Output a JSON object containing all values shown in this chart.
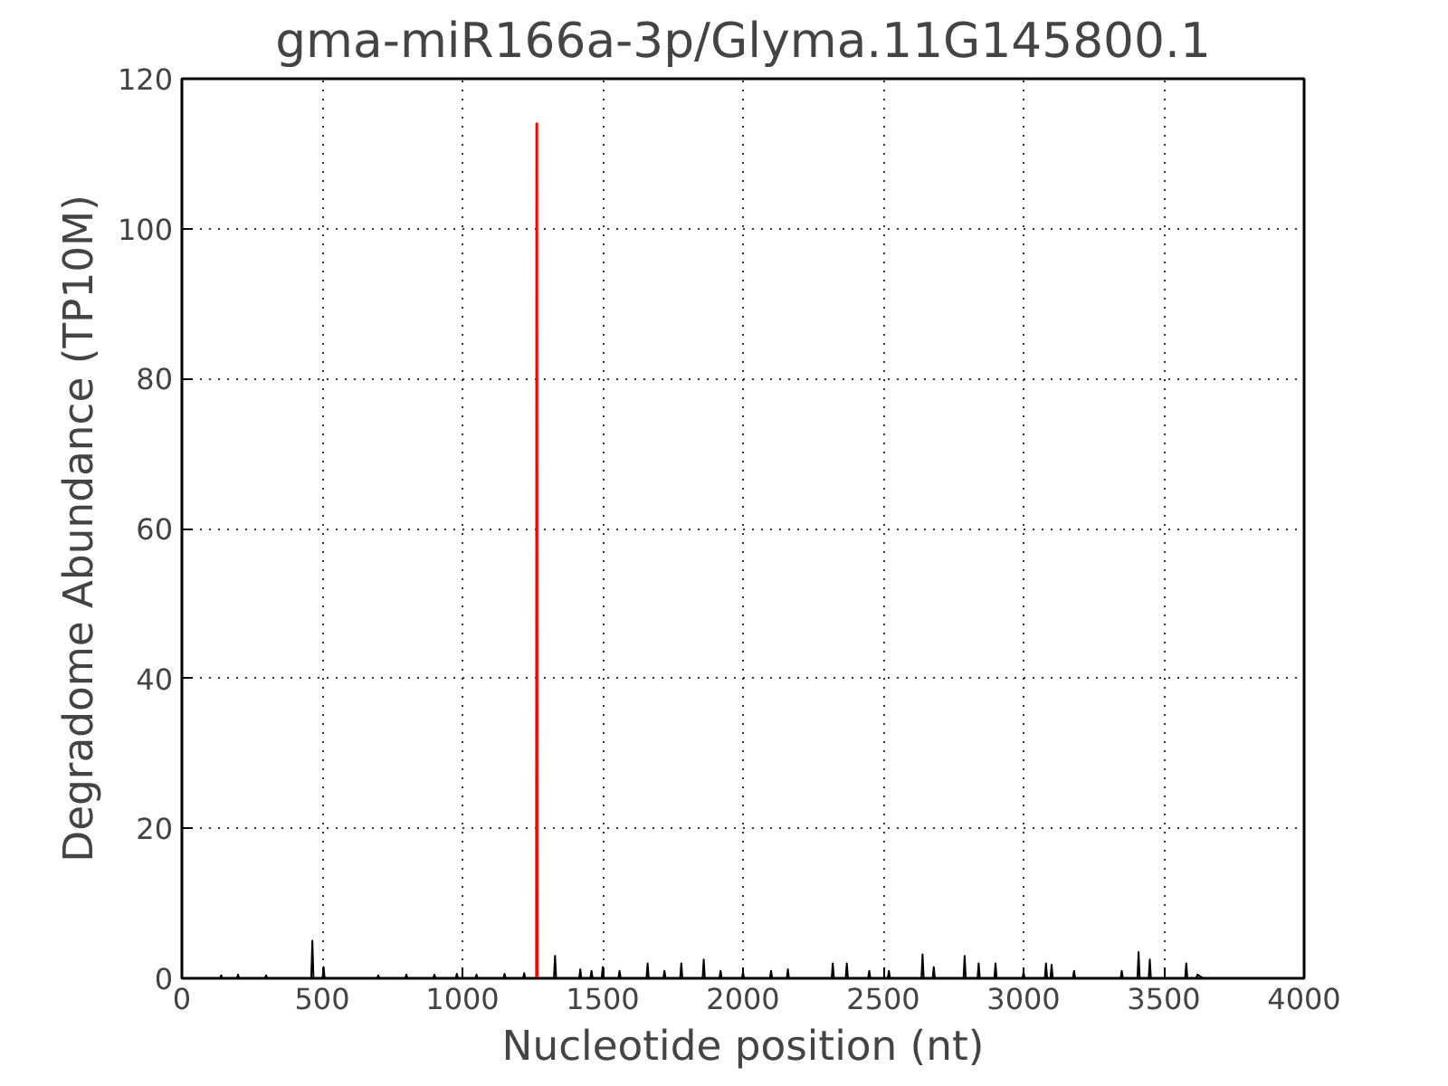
{
  "chart_data": {
    "type": "line",
    "title": "gma-miR166a-3p/Glyma.11G145800.1",
    "xlabel": "Nucleotide position (nt)",
    "ylabel": "Degradome Abundance (TP10M)",
    "xlim": [
      0,
      4000
    ],
    "xticks": [
      0,
      500,
      1000,
      1500,
      2000,
      2500,
      3000,
      3500,
      4000
    ],
    "ylim": [
      0,
      120
    ],
    "yticks": [
      0,
      20,
      40,
      60,
      80,
      100,
      120
    ],
    "grid": true,
    "line_style": "solid",
    "marker": "none",
    "series": [
      {
        "color": "#000000",
        "x": [
          100,
          136,
          140,
          144,
          196,
          200,
          204,
          296,
          300,
          304,
          461,
          465,
          469,
          501,
          505,
          509,
          696,
          700,
          704,
          796,
          800,
          804,
          896,
          900,
          904,
          976,
          980,
          984,
          1046,
          1050,
          1054,
          1146,
          1150,
          1154,
          1216,
          1220,
          1224,
          1326,
          1330,
          1334,
          1416,
          1420,
          1424,
          1456,
          1460,
          1464,
          1496,
          1500,
          1504,
          1556,
          1560,
          1564,
          1656,
          1660,
          1664,
          1716,
          1720,
          1724,
          1776,
          1780,
          1784,
          1856,
          1860,
          1864,
          1916,
          1920,
          1924,
          1996,
          2000,
          2004,
          2096,
          2100,
          2104,
          2156,
          2160,
          2164,
          2316,
          2320,
          2324,
          2366,
          2370,
          2374,
          2446,
          2450,
          2454,
          2516,
          2520,
          2524,
          2636,
          2640,
          2644,
          2676,
          2680,
          2684,
          2786,
          2790,
          2794,
          2836,
          2840,
          2844,
          2896,
          2900,
          2904,
          2996,
          3000,
          3004,
          3076,
          3080,
          3084,
          3096,
          3100,
          3104,
          3176,
          3180,
          3184,
          3346,
          3350,
          3354,
          3406,
          3410,
          3414,
          3446,
          3450,
          3454,
          3576,
          3580,
          3584,
          3616,
          3620,
          3640
        ],
        "values": [
          0,
          0,
          0.4,
          0,
          0,
          0.5,
          0,
          0,
          0.4,
          0,
          0,
          5,
          0,
          0,
          1.5,
          0,
          0,
          0.4,
          0,
          0,
          0.5,
          0,
          0,
          0.5,
          0,
          0,
          0.6,
          0,
          0,
          0.5,
          0,
          0,
          0.6,
          0,
          0,
          0.7,
          0,
          0,
          3,
          0,
          0,
          1.2,
          0,
          0,
          1,
          0,
          0,
          1.5,
          0,
          0,
          1,
          0,
          0,
          2,
          0,
          0,
          1,
          0,
          0,
          2,
          0,
          0,
          2.5,
          0,
          0,
          1,
          0,
          0,
          0.8,
          0,
          0,
          1,
          0,
          0,
          1.2,
          0,
          0,
          2,
          0,
          0,
          2,
          0,
          0,
          1,
          0,
          0,
          1,
          0,
          0,
          3.2,
          0,
          0,
          1.5,
          0,
          0,
          3,
          0,
          0,
          2,
          0,
          0,
          2,
          0,
          0,
          0.8,
          0,
          0,
          2,
          0,
          0,
          1.8,
          0,
          0,
          1,
          0,
          0,
          1,
          0,
          0,
          3.5,
          0,
          0,
          2.5,
          0,
          0,
          2,
          0,
          0,
          0.5,
          0
        ]
      },
      {
        "color": "#ff0000",
        "x": [
          1264,
          1265,
          1266
        ],
        "values": [
          0,
          114,
          0
        ]
      }
    ]
  }
}
